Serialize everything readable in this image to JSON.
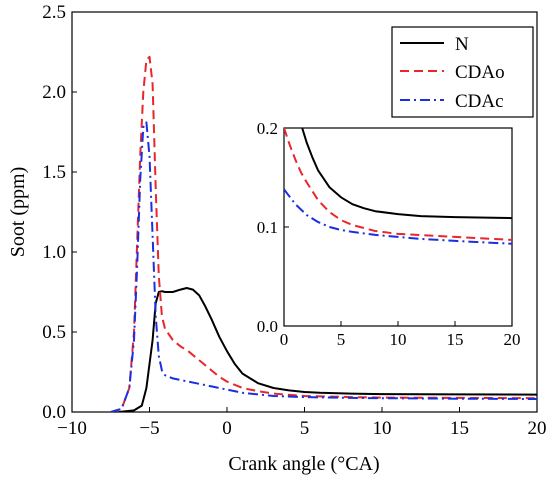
{
  "chart_data": {
    "type": "line",
    "xlabel": "Crank angle (°CA)",
    "ylabel": "Soot (ppm)",
    "xlim": [
      -10,
      20
    ],
    "ylim": [
      0,
      2.5
    ],
    "xticks": [
      "−10",
      "−5",
      "0",
      "5",
      "10",
      "15",
      "20"
    ],
    "yticks": [
      "0.0",
      "0.5",
      "1.0",
      "1.5",
      "2.0",
      "2.5"
    ],
    "grid": false,
    "legend_position": "top-right",
    "series": [
      {
        "name": "N",
        "color": "#000000",
        "dash": "solid",
        "x": [
          -7,
          -6,
          -5.5,
          -5.2,
          -4.8,
          -4.6,
          -4.4,
          -4.2,
          -4,
          -3.5,
          -3,
          -2.6,
          -2.2,
          -1.8,
          -1.4,
          -1,
          -0.5,
          0,
          0.5,
          1,
          2,
          3,
          4,
          5,
          6,
          8,
          10,
          15,
          20
        ],
        "y": [
          0,
          0.01,
          0.04,
          0.15,
          0.45,
          0.68,
          0.75,
          0.755,
          0.75,
          0.75,
          0.765,
          0.775,
          0.765,
          0.73,
          0.66,
          0.58,
          0.47,
          0.38,
          0.3,
          0.24,
          0.18,
          0.15,
          0.135,
          0.125,
          0.12,
          0.115,
          0.112,
          0.11,
          0.109
        ]
      },
      {
        "name": "CDAo",
        "color": "#e8262b",
        "dash": "dash",
        "x": [
          -7.5,
          -6.8,
          -6.3,
          -6,
          -5.8,
          -5.6,
          -5.4,
          -5.2,
          -5,
          -4.8,
          -4.6,
          -4.4,
          -4.2,
          -4,
          -3.5,
          -3,
          -2.5,
          -2,
          -1.5,
          -1,
          -0.5,
          0,
          1,
          2,
          3,
          5,
          8,
          10,
          15,
          20
        ],
        "y": [
          0,
          0.02,
          0.15,
          0.5,
          1.05,
          1.6,
          2.0,
          2.2,
          2.22,
          2.05,
          1.4,
          0.85,
          0.6,
          0.52,
          0.45,
          0.41,
          0.38,
          0.34,
          0.3,
          0.26,
          0.22,
          0.19,
          0.15,
          0.13,
          0.115,
          0.1,
          0.093,
          0.09,
          0.088,
          0.086
        ]
      },
      {
        "name": "CDAc",
        "color": "#1a2fe0",
        "dash": "dashdot",
        "x": [
          -7.5,
          -6.8,
          -6.3,
          -6,
          -5.8,
          -5.6,
          -5.4,
          -5.2,
          -5,
          -4.8,
          -4.6,
          -4.4,
          -4.2,
          -4,
          -3.5,
          -3,
          -2.5,
          -2,
          -1,
          0,
          1,
          2,
          3,
          5,
          8,
          10,
          15,
          20
        ],
        "y": [
          0,
          0.02,
          0.15,
          0.45,
          0.9,
          1.45,
          1.78,
          1.81,
          1.6,
          1.1,
          0.6,
          0.35,
          0.26,
          0.23,
          0.21,
          0.2,
          0.19,
          0.18,
          0.16,
          0.14,
          0.12,
          0.11,
          0.1,
          0.093,
          0.088,
          0.086,
          0.083,
          0.081
        ]
      }
    ],
    "inset": {
      "xlim": [
        0,
        20
      ],
      "ylim": [
        0,
        0.2
      ],
      "xticks": [
        "0",
        "5",
        "10",
        "15",
        "20"
      ],
      "yticks": [
        "0.0",
        "0.1",
        "0.2"
      ],
      "series": [
        {
          "name": "N",
          "x": [
            1.6,
            2,
            2.5,
            3,
            4,
            5,
            6,
            7,
            8,
            10,
            12,
            15,
            20
          ],
          "y": [
            0.2,
            0.185,
            0.17,
            0.157,
            0.14,
            0.13,
            0.123,
            0.119,
            0.116,
            0.113,
            0.111,
            0.11,
            0.109
          ]
        },
        {
          "name": "CDAo",
          "x": [
            0,
            0.5,
            1,
            1.5,
            2,
            3,
            4,
            5,
            6,
            8,
            10,
            15,
            20
          ],
          "y": [
            0.2,
            0.183,
            0.168,
            0.155,
            0.145,
            0.127,
            0.115,
            0.107,
            0.102,
            0.096,
            0.093,
            0.09,
            0.087
          ]
        },
        {
          "name": "CDAc",
          "x": [
            0,
            1,
            2,
            3,
            4,
            5,
            6,
            8,
            10,
            12,
            15,
            20
          ],
          "y": [
            0.138,
            0.123,
            0.112,
            0.105,
            0.1,
            0.097,
            0.095,
            0.092,
            0.09,
            0.088,
            0.086,
            0.083
          ]
        }
      ]
    }
  }
}
